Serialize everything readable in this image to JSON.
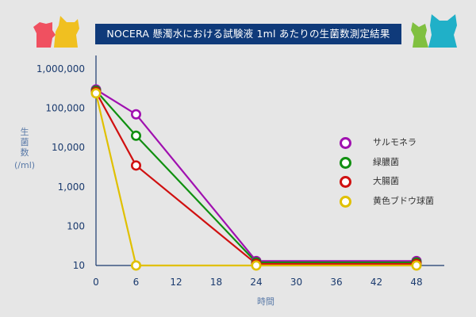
{
  "title": "NOCERA 懸濁水における試験液 1ml あたりの生菌数測定結果",
  "colors": {
    "background": "#e6e6e6",
    "title_bg": "#0f3a7a",
    "axis": "#1a3a6e",
    "label": "#5a7aa8"
  },
  "chart_data": {
    "type": "line",
    "ylabel": {
      "chars": [
        "生",
        "菌",
        "数"
      ],
      "unit": "(/ml)"
    },
    "xlabel": "時間",
    "x_ticks": [
      0,
      6,
      12,
      18,
      24,
      30,
      36,
      42,
      48
    ],
    "y_ticks": [
      {
        "value": 10,
        "label": "10"
      },
      {
        "value": 100,
        "label": "100"
      },
      {
        "value": 1000,
        "label": "1,000"
      },
      {
        "value": 10000,
        "label": "10,000"
      },
      {
        "value": 100000,
        "label": "100,000"
      },
      {
        "value": 1000000,
        "label": "1,000,000"
      }
    ],
    "xlim": [
      0,
      48
    ],
    "ylim": [
      10,
      1000000
    ],
    "y_scale": "log",
    "grid": false,
    "legend_position": "right",
    "series": [
      {
        "name": "サルモネラ",
        "color": "#a010b0",
        "points": [
          [
            0,
            300000
          ],
          [
            6,
            70000
          ],
          [
            24,
            13
          ],
          [
            48,
            13
          ]
        ]
      },
      {
        "name": "緑膿菌",
        "color": "#109010",
        "points": [
          [
            0,
            280000
          ],
          [
            6,
            20000
          ],
          [
            24,
            12
          ],
          [
            48,
            12
          ]
        ]
      },
      {
        "name": "大腸菌",
        "color": "#d01010",
        "points": [
          [
            0,
            260000
          ],
          [
            6,
            3500
          ],
          [
            24,
            11
          ],
          [
            48,
            11
          ]
        ]
      },
      {
        "name": "黄色ブドウ球菌",
        "color": "#e0c000",
        "points": [
          [
            0,
            240000
          ],
          [
            6,
            10
          ],
          [
            24,
            10
          ],
          [
            48,
            10
          ]
        ]
      }
    ]
  },
  "mascots": {
    "left": {
      "colors": [
        "#f05060",
        "#f0c020"
      ]
    },
    "right": {
      "colors": [
        "#80c040",
        "#20b0c8"
      ]
    }
  }
}
